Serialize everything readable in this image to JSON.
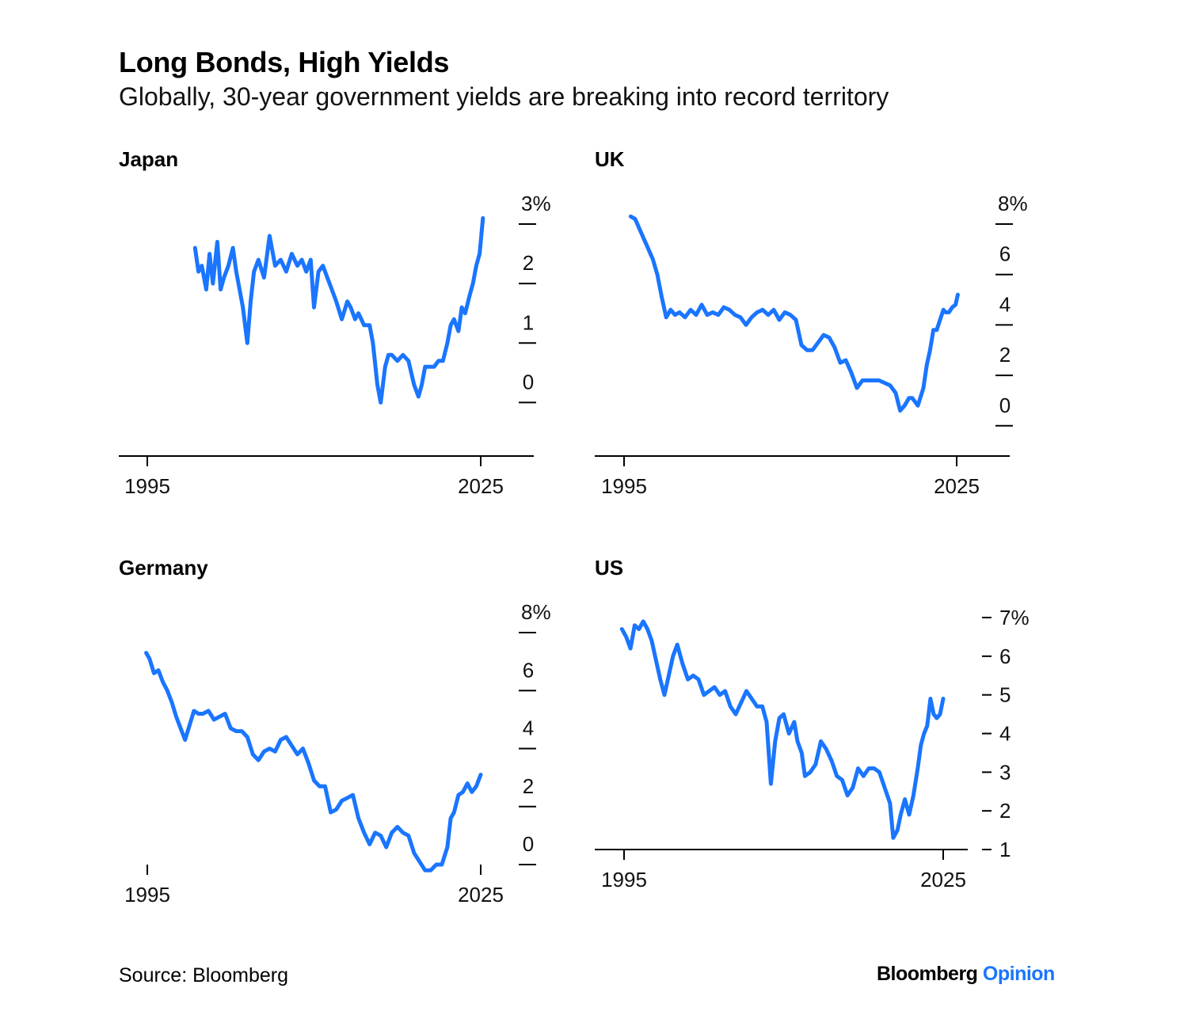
{
  "header": {
    "title": "Long Bonds, High Yields",
    "subtitle": "Globally, 30-year government yields are breaking into record territory"
  },
  "footer": {
    "source": "Source: Bloomberg",
    "brand_main": "Bloomberg",
    "brand_accent": "Opinion"
  },
  "colors": {
    "line": "#1a75ff",
    "axis": "#000000",
    "brand_accent": "#1a75ff"
  },
  "chart_data": [
    {
      "type": "line",
      "title": "Japan",
      "x_ticks": [
        "1995",
        "2025"
      ],
      "y_ticks": [
        "0",
        "1",
        "2",
        "3%"
      ],
      "ylim": [
        -0.9,
        3
      ],
      "xlim": [
        1992.5,
        2030
      ],
      "series": [
        {
          "x": [
            1999.3,
            1999.6,
            1999.9,
            2000.3,
            2000.6,
            2000.9,
            2001.3,
            2001.6,
            2001.9,
            2002.3,
            2002.7,
            2003.0,
            2003.3,
            2003.6,
            2004.0,
            2004.3,
            2004.6,
            2005.0,
            2005.5,
            2006.0,
            2006.5,
            2007.0,
            2007.5,
            2008.0,
            2008.5,
            2008.9,
            2009.3,
            2009.7,
            2010.0,
            2010.4,
            2010.8,
            2011.2,
            2011.6,
            2012.0,
            2012.5,
            2013.0,
            2013.3,
            2013.7,
            2014.0,
            2014.5,
            2015.0,
            2015.3,
            2015.7,
            2016.0,
            2016.4,
            2016.7,
            2017.0,
            2017.5,
            2018.0,
            2018.5,
            2019.0,
            2019.4,
            2019.7,
            2020.0,
            2020.4,
            2020.8,
            2021.2,
            2021.6,
            2022.0,
            2022.3,
            2022.6,
            2023.0,
            2023.3,
            2023.6,
            2024.0,
            2024.3,
            2024.6,
            2024.9,
            2025.2
          ],
          "y": [
            2.6,
            2.2,
            2.3,
            1.9,
            2.5,
            2.0,
            2.7,
            1.9,
            2.1,
            2.3,
            2.6,
            2.2,
            1.9,
            1.6,
            1.0,
            1.7,
            2.2,
            2.4,
            2.1,
            2.8,
            2.3,
            2.4,
            2.2,
            2.5,
            2.3,
            2.4,
            2.2,
            2.4,
            1.6,
            2.2,
            2.3,
            2.1,
            1.9,
            1.7,
            1.4,
            1.7,
            1.6,
            1.4,
            1.5,
            1.3,
            1.3,
            1.0,
            0.3,
            0.0,
            0.6,
            0.8,
            0.8,
            0.7,
            0.8,
            0.7,
            0.3,
            0.1,
            0.3,
            0.6,
            0.6,
            0.6,
            0.7,
            0.7,
            1.0,
            1.3,
            1.4,
            1.2,
            1.6,
            1.5,
            1.8,
            2.0,
            2.3,
            2.5,
            3.1
          ]
        }
      ]
    },
    {
      "type": "line",
      "title": "UK",
      "x_ticks": [
        "1995",
        "2025"
      ],
      "y_ticks": [
        "0",
        "2",
        "4",
        "6",
        "8%"
      ],
      "ylim": [
        -1.2,
        8
      ],
      "xlim": [
        1992.5,
        2030
      ],
      "series": [
        {
          "x": [
            1995.6,
            1996.0,
            1996.4,
            1996.8,
            1997.2,
            1997.6,
            1998.0,
            1998.4,
            1998.8,
            1999.2,
            1999.6,
            2000.0,
            2000.5,
            2001.0,
            2001.5,
            2002.0,
            2002.5,
            2003.0,
            2003.5,
            2004.0,
            2004.5,
            2005.0,
            2005.5,
            2006.0,
            2006.5,
            2007.0,
            2007.5,
            2008.0,
            2008.5,
            2009.0,
            2009.5,
            2010.0,
            2010.5,
            2011.0,
            2011.5,
            2012.0,
            2012.5,
            2013.0,
            2013.5,
            2014.0,
            2014.5,
            2015.0,
            2015.5,
            2016.0,
            2016.5,
            2017.0,
            2017.5,
            2018.0,
            2018.5,
            2019.0,
            2019.5,
            2019.9,
            2020.3,
            2020.7,
            2021.0,
            2021.5,
            2022.0,
            2022.3,
            2022.6,
            2022.9,
            2023.2,
            2023.5,
            2023.8,
            2024.0,
            2024.3,
            2024.6,
            2024.9,
            2025.1
          ],
          "y": [
            8.3,
            8.2,
            7.8,
            7.4,
            7.0,
            6.6,
            6.0,
            5.1,
            4.3,
            4.6,
            4.4,
            4.5,
            4.3,
            4.6,
            4.4,
            4.8,
            4.4,
            4.5,
            4.4,
            4.7,
            4.6,
            4.4,
            4.3,
            4.0,
            4.3,
            4.5,
            4.6,
            4.4,
            4.6,
            4.2,
            4.5,
            4.4,
            4.2,
            3.2,
            3.0,
            3.0,
            3.3,
            3.6,
            3.5,
            3.1,
            2.5,
            2.6,
            2.1,
            1.5,
            1.8,
            1.8,
            1.8,
            1.8,
            1.7,
            1.6,
            1.3,
            0.6,
            0.8,
            1.1,
            1.1,
            0.8,
            1.5,
            2.4,
            3.0,
            3.8,
            3.8,
            4.2,
            4.6,
            4.5,
            4.5,
            4.7,
            4.8,
            5.2
          ]
        }
      ]
    },
    {
      "type": "line",
      "title": "Germany",
      "x_ticks": [
        "1995",
        "2025"
      ],
      "y_ticks": [
        "0",
        "2",
        "4",
        "6",
        "8%"
      ],
      "ylim": [
        -1.2,
        8
      ],
      "xlim": [
        1992.5,
        2030
      ],
      "series": [
        {
          "x": [
            1994.9,
            1995.2,
            1995.6,
            1996.0,
            1996.4,
            1996.8,
            1997.2,
            1997.6,
            1998.0,
            1998.4,
            1998.8,
            1999.2,
            1999.6,
            2000.0,
            2000.5,
            2001.0,
            2001.5,
            2002.0,
            2002.5,
            2003.0,
            2003.5,
            2004.0,
            2004.5,
            2005.0,
            2005.5,
            2006.0,
            2006.5,
            2007.0,
            2007.5,
            2008.0,
            2008.5,
            2009.0,
            2009.5,
            2010.0,
            2010.5,
            2011.0,
            2011.5,
            2012.0,
            2012.5,
            2013.0,
            2013.5,
            2014.0,
            2014.5,
            2015.0,
            2015.5,
            2016.0,
            2016.5,
            2017.0,
            2017.5,
            2018.0,
            2018.5,
            2019.0,
            2019.5,
            2020.0,
            2020.5,
            2021.0,
            2021.5,
            2022.0,
            2022.3,
            2022.6,
            2023.0,
            2023.4,
            2023.8,
            2024.2,
            2024.6,
            2025.0
          ],
          "y": [
            7.3,
            7.1,
            6.6,
            6.7,
            6.3,
            6.0,
            5.6,
            5.1,
            4.7,
            4.3,
            4.8,
            5.3,
            5.2,
            5.2,
            5.3,
            5.0,
            5.1,
            5.2,
            4.7,
            4.6,
            4.6,
            4.4,
            3.8,
            3.6,
            3.9,
            4.0,
            3.9,
            4.3,
            4.4,
            4.1,
            3.8,
            4.0,
            3.5,
            2.9,
            2.7,
            2.7,
            1.8,
            1.9,
            2.2,
            2.3,
            2.4,
            1.6,
            1.1,
            0.7,
            1.1,
            1.0,
            0.6,
            1.1,
            1.3,
            1.1,
            1.0,
            0.4,
            0.1,
            -0.2,
            -0.2,
            0.0,
            0.0,
            0.6,
            1.6,
            1.8,
            2.4,
            2.5,
            2.8,
            2.5,
            2.7,
            3.1
          ]
        }
      ]
    },
    {
      "type": "line",
      "title": "US",
      "x_ticks": [
        "1995",
        "2025"
      ],
      "y_ticks": [
        "1",
        "2",
        "3",
        "4",
        "5",
        "6",
        "7%"
      ],
      "ylim": [
        1,
        7
      ],
      "xlim": [
        1992.5,
        2027.5
      ],
      "series": [
        {
          "x": [
            1994.8,
            1995.2,
            1995.6,
            1996.0,
            1996.4,
            1996.8,
            1997.2,
            1997.6,
            1998.0,
            1998.4,
            1998.8,
            1999.2,
            1999.6,
            2000.0,
            2000.5,
            2001.0,
            2001.5,
            2002.0,
            2002.5,
            2003.0,
            2003.5,
            2004.0,
            2004.5,
            2005.0,
            2005.5,
            2006.0,
            2006.5,
            2007.0,
            2007.5,
            2008.0,
            2008.4,
            2008.8,
            2009.2,
            2009.6,
            2010.0,
            2010.5,
            2011.0,
            2011.3,
            2011.7,
            2012.0,
            2012.5,
            2013.0,
            2013.5,
            2014.0,
            2014.5,
            2015.0,
            2015.5,
            2016.0,
            2016.5,
            2017.0,
            2017.5,
            2018.0,
            2018.5,
            2019.0,
            2019.5,
            2020.0,
            2020.3,
            2020.7,
            2021.0,
            2021.4,
            2021.8,
            2022.2,
            2022.6,
            2022.9,
            2023.2,
            2023.5,
            2023.8,
            2024.1,
            2024.4,
            2024.7,
            2025.0
          ],
          "y": [
            6.7,
            6.5,
            6.2,
            6.8,
            6.7,
            6.9,
            6.7,
            6.4,
            5.9,
            5.4,
            5.0,
            5.5,
            6.0,
            6.3,
            5.8,
            5.4,
            5.5,
            5.4,
            5.0,
            5.1,
            5.2,
            5.0,
            5.1,
            4.7,
            4.5,
            4.8,
            5.1,
            4.9,
            4.7,
            4.7,
            4.3,
            2.7,
            3.8,
            4.4,
            4.5,
            4.0,
            4.3,
            3.8,
            3.5,
            2.9,
            3.0,
            3.2,
            3.8,
            3.6,
            3.3,
            2.9,
            2.8,
            2.4,
            2.6,
            3.1,
            2.9,
            3.1,
            3.1,
            3.0,
            2.6,
            2.2,
            1.3,
            1.5,
            1.9,
            2.3,
            1.9,
            2.4,
            3.1,
            3.7,
            4.0,
            4.2,
            4.9,
            4.5,
            4.4,
            4.5,
            4.9
          ]
        }
      ]
    }
  ]
}
